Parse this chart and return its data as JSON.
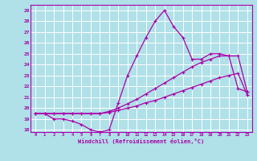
{
  "xlabel": "Windchill (Refroidissement éolien,°C)",
  "bg_color": "#b0e0e8",
  "grid_color": "#ffffff",
  "line_color": "#aa00aa",
  "hours": [
    0,
    1,
    2,
    3,
    4,
    5,
    6,
    7,
    8,
    9,
    10,
    11,
    12,
    13,
    14,
    15,
    16,
    17,
    18,
    19,
    20,
    21,
    22,
    23
  ],
  "curve1": [
    19.5,
    19.5,
    19.0,
    19.0,
    18.8,
    18.5,
    18.0,
    17.8,
    18.0,
    20.5,
    23.0,
    24.8,
    26.5,
    28.0,
    29.0,
    27.5,
    26.5,
    24.5,
    24.5,
    25.0,
    25.0,
    24.8,
    21.8,
    21.5
  ],
  "curve2": [
    19.5,
    19.5,
    19.5,
    19.5,
    19.5,
    19.5,
    19.5,
    19.5,
    19.6,
    19.8,
    20.0,
    20.2,
    20.5,
    20.7,
    21.0,
    21.3,
    21.6,
    21.9,
    22.2,
    22.5,
    22.8,
    23.0,
    23.2,
    21.2
  ],
  "curve3": [
    19.5,
    19.5,
    19.5,
    19.5,
    19.5,
    19.5,
    19.5,
    19.5,
    19.7,
    20.0,
    20.4,
    20.8,
    21.3,
    21.8,
    22.3,
    22.8,
    23.3,
    23.8,
    24.2,
    24.5,
    24.8,
    24.8,
    24.8,
    21.5
  ],
  "ylim": [
    17.8,
    29.5
  ],
  "xlim": [
    -0.5,
    23.5
  ],
  "yticks": [
    18,
    19,
    20,
    21,
    22,
    23,
    24,
    25,
    26,
    27,
    28,
    29
  ],
  "xticks": [
    0,
    1,
    2,
    3,
    4,
    5,
    6,
    7,
    8,
    9,
    10,
    11,
    12,
    13,
    14,
    15,
    16,
    17,
    18,
    19,
    20,
    21,
    22,
    23
  ]
}
